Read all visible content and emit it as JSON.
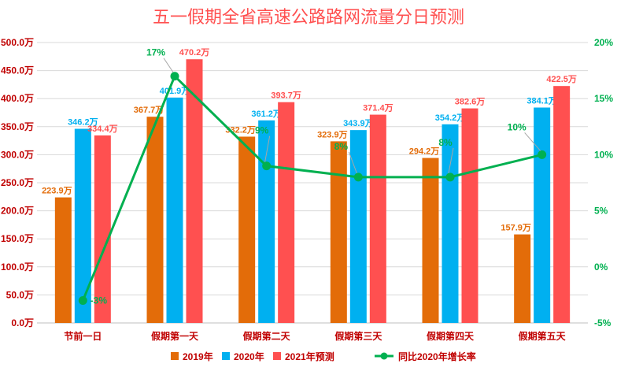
{
  "chart_data": {
    "type": "bar",
    "title": "五一假期全省高速公路路网流量分日预测",
    "categories": [
      "节前一日",
      "假期第一天",
      "假期第二天",
      "假期第三天",
      "假期第四天",
      "假期第五天"
    ],
    "series": [
      {
        "name": "2019年",
        "color": "#E36C09",
        "values": [
          223.9,
          367.7,
          332.2,
          323.9,
          294.2,
          157.9
        ],
        "labels": [
          "223.9万",
          "367.7万",
          "332.2万",
          "323.9万",
          "294.2万",
          "157.9万"
        ]
      },
      {
        "name": "2020年",
        "color": "#00B0F0",
        "values": [
          346.2,
          401.9,
          361.2,
          343.9,
          354.2,
          384.1
        ],
        "labels": [
          "346.2万",
          "401.9万",
          "361.2万",
          "343.9万",
          "354.2万",
          "384.1万"
        ]
      },
      {
        "name": "2021年预测",
        "color": "#FF5050",
        "values": [
          334.4,
          470.2,
          393.7,
          371.4,
          382.6,
          422.5
        ],
        "labels": [
          "334.4万",
          "470.2万",
          "393.7万",
          "371.4万",
          "382.6万",
          "422.5万"
        ]
      }
    ],
    "line_series": {
      "name": "同比2020年增长率",
      "color": "#00B050",
      "values": [
        -3,
        17,
        9,
        8,
        8,
        10
      ],
      "labels": [
        "-3%",
        "17%",
        "9%",
        "8%",
        "8%",
        "10%"
      ],
      "axis": "right"
    },
    "y_left": {
      "min": 0,
      "max": 500,
      "step": 50,
      "tick_labels": [
        "0.0万",
        "50.0万",
        "100.0万",
        "150.0万",
        "200.0万",
        "250.0万",
        "300.0万",
        "350.0万",
        "400.0万",
        "450.0万",
        "500.0万"
      ]
    },
    "y_right": {
      "min": -5,
      "max": 20,
      "step": 5,
      "tick_labels": [
        "-5%",
        "0%",
        "5%",
        "10%",
        "15%",
        "20%"
      ]
    },
    "grid": true,
    "legend_position": "bottom",
    "colors": {
      "title": "#FF5050",
      "left_axis": "#C00000",
      "right_axis": "#00B050",
      "category": "#C00000",
      "grid": "#D9D9D9"
    }
  }
}
